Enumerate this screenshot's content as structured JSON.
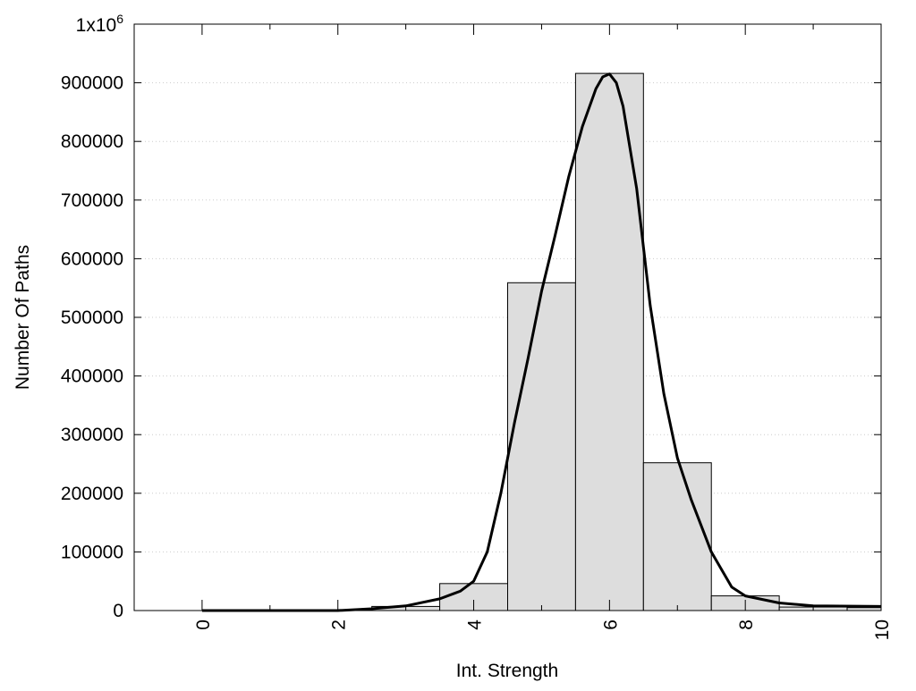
{
  "chart_data": {
    "type": "bar",
    "title": "",
    "xlabel": "Int. Strength",
    "ylabel": "Number Of Paths",
    "xlim": [
      -1,
      10
    ],
    "ylim": [
      0,
      1000000
    ],
    "grid": true,
    "x_ticks": [
      0,
      2,
      4,
      6,
      8,
      10
    ],
    "x_tick_labels": [
      "0",
      "2",
      "4",
      "6",
      "8",
      "10"
    ],
    "y_ticks": [
      0,
      100000,
      200000,
      300000,
      400000,
      500000,
      600000,
      700000,
      800000,
      900000
    ],
    "y_tick_labels": [
      "0",
      "100000",
      "200000",
      "300000",
      "400000",
      "500000",
      "600000",
      "700000",
      "800000",
      "900000"
    ],
    "y_top_label": {
      "base": "1x10",
      "exponent": "6"
    },
    "bars": {
      "x": [
        0,
        1,
        2,
        3,
        4,
        5,
        6,
        7,
        8,
        9,
        10
      ],
      "values": [
        0,
        0,
        500,
        7000,
        46000,
        559000,
        916000,
        252000,
        25000,
        6000,
        5000
      ]
    },
    "curve": {
      "x": [
        0,
        1,
        2,
        2.5,
        3,
        3.5,
        3.8,
        4,
        4.2,
        4.4,
        4.6,
        4.8,
        5,
        5.2,
        5.4,
        5.6,
        5.8,
        5.9,
        6,
        6.1,
        6.2,
        6.4,
        6.6,
        6.8,
        7,
        7.2,
        7.5,
        7.8,
        8,
        8.5,
        9,
        10
      ],
      "values": [
        0,
        0,
        0,
        3000,
        8000,
        20000,
        33000,
        50000,
        100000,
        200000,
        320000,
        430000,
        545000,
        640000,
        740000,
        825000,
        890000,
        910000,
        915000,
        900000,
        860000,
        720000,
        520000,
        370000,
        260000,
        190000,
        100000,
        40000,
        25000,
        13000,
        8000,
        7000
      ]
    },
    "colors": {
      "bar_fill": "#dddddd",
      "bar_stroke": "#000000",
      "curve": "#000000",
      "grid": "#cccccc"
    }
  }
}
